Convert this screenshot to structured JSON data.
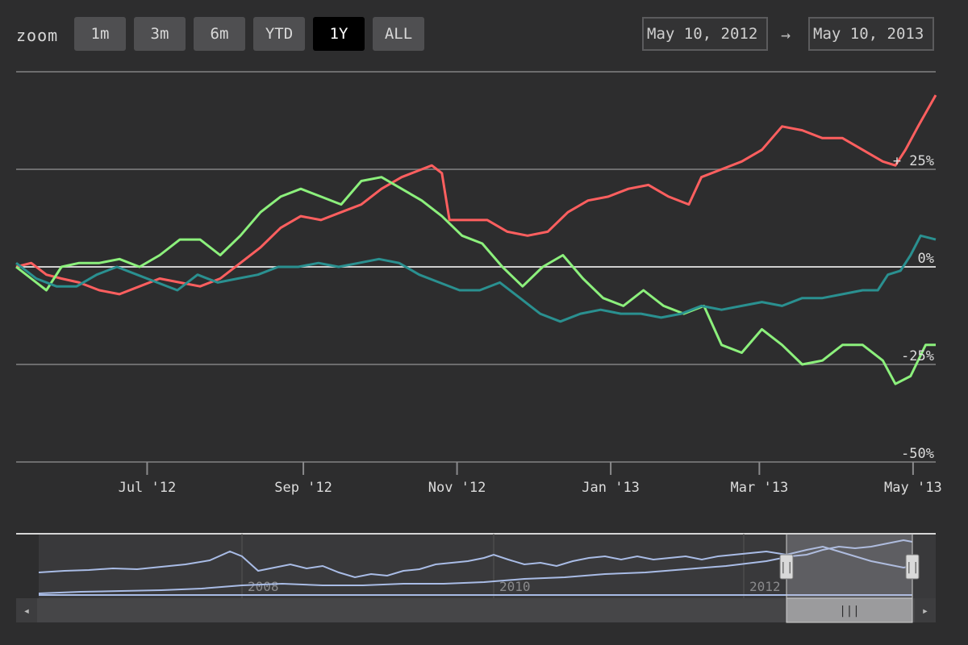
{
  "toolbar": {
    "zoom_label": "zoom",
    "buttons": [
      {
        "label": "1m",
        "active": false
      },
      {
        "label": "3m",
        "active": false
      },
      {
        "label": "6m",
        "active": false
      },
      {
        "label": "YTD",
        "active": false
      },
      {
        "label": "1Y",
        "active": true
      },
      {
        "label": "ALL",
        "active": false
      }
    ],
    "from_date": "May 10, 2012",
    "arrow": "→",
    "to_date": "May 10, 2013"
  },
  "chart_data": {
    "type": "line",
    "x_range": [
      "2012-05-10",
      "2013-05-10"
    ],
    "x_ticks": [
      {
        "date": "2012-07-01",
        "label": "Jul '12"
      },
      {
        "date": "2012-09-01",
        "label": "Sep '12"
      },
      {
        "date": "2012-11-01",
        "label": "Nov '12"
      },
      {
        "date": "2013-01-01",
        "label": "Jan '13"
      },
      {
        "date": "2013-03-01",
        "label": "Mar '13"
      },
      {
        "date": "2013-05-01",
        "label": "May '13"
      }
    ],
    "ylim": [
      -50,
      50
    ],
    "y_ticks": [
      {
        "value": 25,
        "label": "+ 25%"
      },
      {
        "value": 0,
        "label": "0%"
      },
      {
        "value": -25,
        "label": "-25%"
      },
      {
        "value": -50,
        "label": "-50%"
      }
    ],
    "series": [
      {
        "color": "#ff5f5f",
        "points": [
          [
            "2012-05-10",
            0
          ],
          [
            "2012-05-16",
            1
          ],
          [
            "2012-05-22",
            -2
          ],
          [
            "2012-05-28",
            -3
          ],
          [
            "2012-06-04",
            -4
          ],
          [
            "2012-06-12",
            -6
          ],
          [
            "2012-06-20",
            -7
          ],
          [
            "2012-06-28",
            -5
          ],
          [
            "2012-07-06",
            -3
          ],
          [
            "2012-07-14",
            -4
          ],
          [
            "2012-07-22",
            -5
          ],
          [
            "2012-07-30",
            -3
          ],
          [
            "2012-08-07",
            1
          ],
          [
            "2012-08-15",
            5
          ],
          [
            "2012-08-23",
            10
          ],
          [
            "2012-08-31",
            13
          ],
          [
            "2012-09-08",
            12
          ],
          [
            "2012-09-16",
            14
          ],
          [
            "2012-09-24",
            16
          ],
          [
            "2012-10-02",
            20
          ],
          [
            "2012-10-10",
            23
          ],
          [
            "2012-10-18",
            25
          ],
          [
            "2012-10-22",
            26
          ],
          [
            "2012-10-26",
            24
          ],
          [
            "2012-10-29",
            12
          ],
          [
            "2012-11-05",
            12
          ],
          [
            "2012-11-13",
            12
          ],
          [
            "2012-11-21",
            9
          ],
          [
            "2012-11-29",
            8
          ],
          [
            "2012-12-07",
            9
          ],
          [
            "2012-12-15",
            14
          ],
          [
            "2012-12-23",
            17
          ],
          [
            "2012-12-31",
            18
          ],
          [
            "2013-01-08",
            20
          ],
          [
            "2013-01-16",
            21
          ],
          [
            "2013-01-24",
            18
          ],
          [
            "2013-02-01",
            16
          ],
          [
            "2013-02-06",
            23
          ],
          [
            "2013-02-14",
            25
          ],
          [
            "2013-02-22",
            27
          ],
          [
            "2013-03-02",
            30
          ],
          [
            "2013-03-10",
            36
          ],
          [
            "2013-03-18",
            35
          ],
          [
            "2013-03-26",
            33
          ],
          [
            "2013-04-03",
            33
          ],
          [
            "2013-04-11",
            30
          ],
          [
            "2013-04-19",
            27
          ],
          [
            "2013-04-24",
            26
          ],
          [
            "2013-04-28",
            30
          ],
          [
            "2013-05-03",
            36
          ],
          [
            "2013-05-10",
            44
          ]
        ]
      },
      {
        "color": "#8cf07c",
        "points": [
          [
            "2012-05-10",
            0
          ],
          [
            "2012-05-16",
            -3
          ],
          [
            "2012-05-22",
            -6
          ],
          [
            "2012-05-28",
            0
          ],
          [
            "2012-06-04",
            1
          ],
          [
            "2012-06-12",
            1
          ],
          [
            "2012-06-20",
            2
          ],
          [
            "2012-06-28",
            0
          ],
          [
            "2012-07-06",
            3
          ],
          [
            "2012-07-14",
            7
          ],
          [
            "2012-07-22",
            7
          ],
          [
            "2012-07-30",
            3
          ],
          [
            "2012-08-07",
            8
          ],
          [
            "2012-08-15",
            14
          ],
          [
            "2012-08-23",
            18
          ],
          [
            "2012-08-31",
            20
          ],
          [
            "2012-09-08",
            18
          ],
          [
            "2012-09-16",
            16
          ],
          [
            "2012-09-24",
            22
          ],
          [
            "2012-10-02",
            23
          ],
          [
            "2012-10-10",
            20
          ],
          [
            "2012-10-18",
            17
          ],
          [
            "2012-10-26",
            13
          ],
          [
            "2012-11-03",
            8
          ],
          [
            "2012-11-11",
            6
          ],
          [
            "2012-11-19",
            0
          ],
          [
            "2012-11-27",
            -5
          ],
          [
            "2012-12-05",
            0
          ],
          [
            "2012-12-13",
            3
          ],
          [
            "2012-12-21",
            -3
          ],
          [
            "2012-12-29",
            -8
          ],
          [
            "2013-01-06",
            -10
          ],
          [
            "2013-01-14",
            -6
          ],
          [
            "2013-01-22",
            -10
          ],
          [
            "2013-01-30",
            -12
          ],
          [
            "2013-02-07",
            -10
          ],
          [
            "2013-02-14",
            -20
          ],
          [
            "2013-02-22",
            -22
          ],
          [
            "2013-03-02",
            -16
          ],
          [
            "2013-03-10",
            -20
          ],
          [
            "2013-03-18",
            -25
          ],
          [
            "2013-03-26",
            -24
          ],
          [
            "2013-04-03",
            -20
          ],
          [
            "2013-04-11",
            -20
          ],
          [
            "2013-04-19",
            -24
          ],
          [
            "2013-04-24",
            -30
          ],
          [
            "2013-04-30",
            -28
          ],
          [
            "2013-05-06",
            -20
          ],
          [
            "2013-05-10",
            -20
          ]
        ]
      },
      {
        "color": "#2a9090",
        "points": [
          [
            "2012-05-10",
            1
          ],
          [
            "2012-05-18",
            -3
          ],
          [
            "2012-05-26",
            -5
          ],
          [
            "2012-06-03",
            -5
          ],
          [
            "2012-06-11",
            -2
          ],
          [
            "2012-06-19",
            0
          ],
          [
            "2012-06-27",
            -2
          ],
          [
            "2012-07-05",
            -4
          ],
          [
            "2012-07-13",
            -6
          ],
          [
            "2012-07-21",
            -2
          ],
          [
            "2012-07-29",
            -4
          ],
          [
            "2012-08-06",
            -3
          ],
          [
            "2012-08-14",
            -2
          ],
          [
            "2012-08-22",
            0
          ],
          [
            "2012-08-30",
            0
          ],
          [
            "2012-09-07",
            1
          ],
          [
            "2012-09-15",
            0
          ],
          [
            "2012-09-23",
            1
          ],
          [
            "2012-10-01",
            2
          ],
          [
            "2012-10-09",
            1
          ],
          [
            "2012-10-17",
            -2
          ],
          [
            "2012-10-25",
            -4
          ],
          [
            "2012-11-02",
            -6
          ],
          [
            "2012-11-10",
            -6
          ],
          [
            "2012-11-18",
            -4
          ],
          [
            "2012-11-26",
            -8
          ],
          [
            "2012-12-04",
            -12
          ],
          [
            "2012-12-12",
            -14
          ],
          [
            "2012-12-20",
            -12
          ],
          [
            "2012-12-28",
            -11
          ],
          [
            "2013-01-05",
            -12
          ],
          [
            "2013-01-13",
            -12
          ],
          [
            "2013-01-21",
            -13
          ],
          [
            "2013-01-29",
            -12
          ],
          [
            "2013-02-06",
            -10
          ],
          [
            "2013-02-14",
            -11
          ],
          [
            "2013-02-22",
            -10
          ],
          [
            "2013-03-02",
            -9
          ],
          [
            "2013-03-10",
            -10
          ],
          [
            "2013-03-18",
            -8
          ],
          [
            "2013-03-26",
            -8
          ],
          [
            "2013-04-03",
            -7
          ],
          [
            "2013-04-11",
            -6
          ],
          [
            "2013-04-17",
            -6
          ],
          [
            "2013-04-21",
            -2
          ],
          [
            "2013-04-26",
            -1
          ],
          [
            "2013-04-30",
            3
          ],
          [
            "2013-05-04",
            8
          ],
          [
            "2013-05-10",
            7
          ]
        ]
      }
    ]
  },
  "navigator": {
    "year_labels": [
      {
        "label": "2008",
        "x": 300
      },
      {
        "label": "2010",
        "x": 612
      },
      {
        "label": "2012",
        "x": 922
      }
    ],
    "handle_glyph": "||",
    "thumb_glyph": "|||",
    "left_arrow": "◂",
    "right_arrow": "▸"
  },
  "colors": {
    "background": "#2d2d2e",
    "grid": "#6d6d6e",
    "navigator_line": "#a9bce6"
  }
}
